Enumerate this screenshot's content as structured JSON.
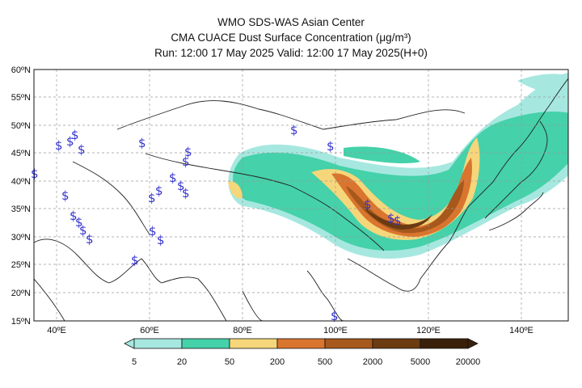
{
  "title": {
    "line1": "WMO SDS-WAS Asian Center",
    "line2": "CMA CUACE Dust Surface Concentration (μg/m³)",
    "line3": "Run: 12:00 17 May 2025     Valid: 12:00 17 May 2025(H+0)"
  },
  "map": {
    "lon_range": [
      35,
      150
    ],
    "lat_range": [
      15,
      60
    ],
    "lat_ticks": [
      "15ºN",
      "20ºN",
      "25ºN",
      "30ºN",
      "35ºN",
      "40ºN",
      "45ºN",
      "50ºN",
      "55ºN",
      "60ºN"
    ],
    "lon_ticks": [
      "40ºE",
      "60ºE",
      "80ºE",
      "100ºE",
      "120ºE",
      "140ºE"
    ],
    "grid": true,
    "station_symbol": "$",
    "station_color": "#3333cc"
  },
  "colorbar": {
    "levels": [
      "5",
      "20",
      "50",
      "200",
      "500",
      "2000",
      "5000",
      "20000"
    ],
    "colors": [
      "#a6e8e0",
      "#45d1a9",
      "#f6d67a",
      "#d9752e",
      "#a6581d",
      "#6b3b12",
      "#3a200a"
    ]
  }
}
